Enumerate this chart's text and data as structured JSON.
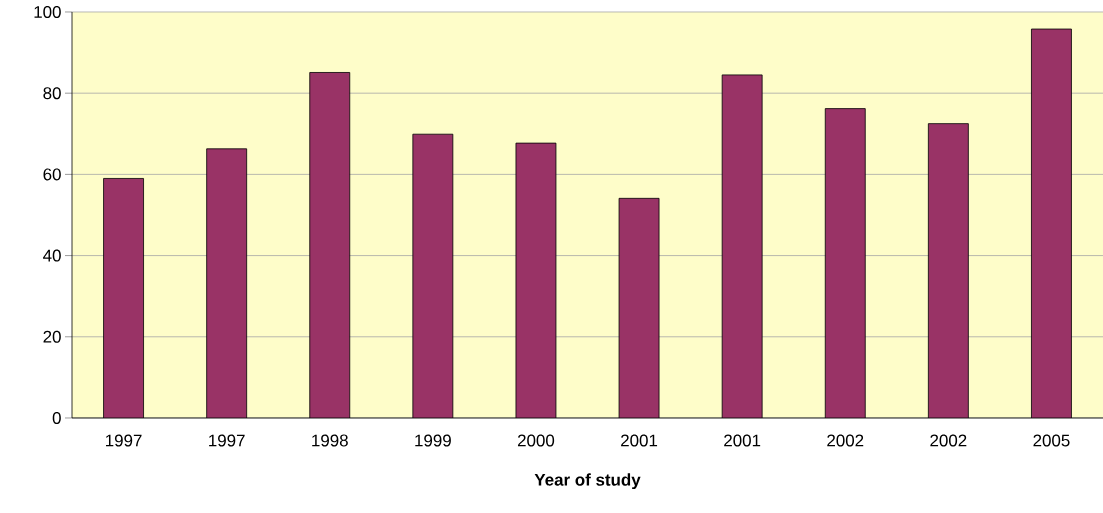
{
  "chart_data": {
    "type": "bar",
    "xlabel": "Year of study",
    "categories": [
      "1997",
      "1997",
      "1998",
      "1999",
      "2000",
      "2001",
      "2001",
      "2002",
      "2002",
      "2005"
    ],
    "values": [
      59,
      66.3,
      85.1,
      69.9,
      67.7,
      54.1,
      84.5,
      76.2,
      72.5,
      95.8
    ],
    "color": "#993366",
    "ylim": [
      0,
      100
    ],
    "yticks": [
      0,
      20,
      40,
      60,
      80,
      100
    ],
    "grid": "y"
  }
}
